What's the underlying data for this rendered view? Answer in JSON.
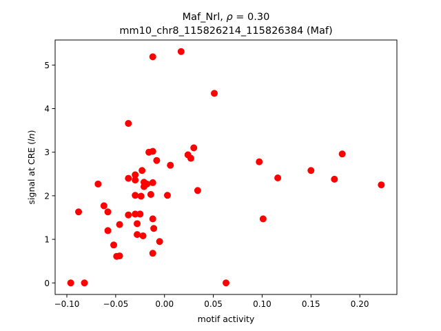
{
  "chart_data": {
    "type": "scatter",
    "title_line1_prefix": "Maf_Nrl, ",
    "title_line1_symbol": "ρ",
    "title_line1_suffix": " = 0.30",
    "title_line2": "mm10_chr8_115826214_115826384 (Maf)",
    "xlabel": "motif activity",
    "ylabel_prefix": "signal at CRE (",
    "ylabel_italic": "ln",
    "ylabel_suffix": ")",
    "xlim": [
      -0.112,
      0.238
    ],
    "ylim": [
      -0.265,
      5.575
    ],
    "x_ticks": [
      -0.1,
      -0.05,
      0.0,
      0.05,
      0.1,
      0.15,
      0.2
    ],
    "x_tick_labels": [
      "−0.10",
      "−0.05",
      "0.00",
      "0.05",
      "0.10",
      "0.15",
      "0.20"
    ],
    "y_ticks": [
      0,
      1,
      2,
      3,
      4,
      5
    ],
    "y_tick_labels": [
      "0",
      "1",
      "2",
      "3",
      "4",
      "5"
    ],
    "grid": false,
    "marker_color": "#ff0000",
    "points": [
      [
        -0.096,
        0.0
      ],
      [
        -0.082,
        0.0
      ],
      [
        0.063,
        0.0
      ],
      [
        -0.088,
        1.63
      ],
      [
        -0.068,
        2.27
      ],
      [
        -0.062,
        1.77
      ],
      [
        -0.058,
        1.63
      ],
      [
        -0.058,
        1.2
      ],
      [
        -0.052,
        0.87
      ],
      [
        -0.049,
        0.61
      ],
      [
        -0.046,
        0.62
      ],
      [
        -0.046,
        1.34
      ],
      [
        -0.037,
        3.66
      ],
      [
        -0.037,
        2.4
      ],
      [
        -0.037,
        1.56
      ],
      [
        -0.03,
        2.48
      ],
      [
        -0.03,
        2.36
      ],
      [
        -0.03,
        2.01
      ],
      [
        -0.03,
        1.58
      ],
      [
        -0.028,
        1.36
      ],
      [
        -0.028,
        1.11
      ],
      [
        -0.025,
        1.58
      ],
      [
        -0.024,
        1.99
      ],
      [
        -0.023,
        2.58
      ],
      [
        -0.022,
        1.08
      ],
      [
        -0.021,
        2.31
      ],
      [
        -0.021,
        2.21
      ],
      [
        -0.018,
        2.27
      ],
      [
        -0.016,
        3.0
      ],
      [
        -0.014,
        2.03
      ],
      [
        -0.012,
        5.19
      ],
      [
        -0.012,
        3.02
      ],
      [
        -0.012,
        2.3
      ],
      [
        -0.012,
        1.47
      ],
      [
        -0.012,
        0.68
      ],
      [
        -0.011,
        1.25
      ],
      [
        -0.008,
        2.81
      ],
      [
        -0.005,
        0.95
      ],
      [
        0.003,
        2.01
      ],
      [
        0.006,
        2.7
      ],
      [
        0.017,
        5.31
      ],
      [
        0.024,
        2.94
      ],
      [
        0.027,
        2.86
      ],
      [
        0.03,
        3.1
      ],
      [
        0.034,
        2.12
      ],
      [
        0.051,
        4.35
      ],
      [
        0.097,
        2.78
      ],
      [
        0.101,
        1.47
      ],
      [
        0.116,
        2.41
      ],
      [
        0.15,
        2.58
      ],
      [
        0.174,
        2.38
      ],
      [
        0.182,
        2.96
      ],
      [
        0.222,
        2.25
      ]
    ]
  }
}
